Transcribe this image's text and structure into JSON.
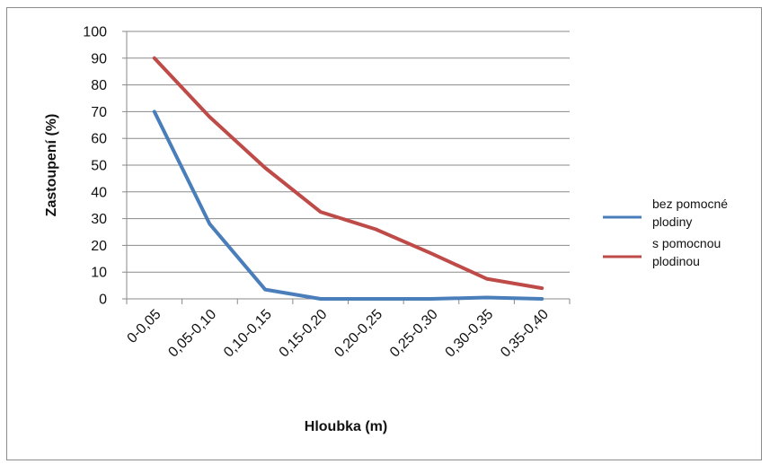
{
  "chart_data": {
    "type": "line",
    "title": "",
    "xlabel": "Hloubka (m)",
    "ylabel": "Zastoupení (%)",
    "ylim": [
      0,
      100
    ],
    "yticks": [
      0,
      10,
      20,
      30,
      40,
      50,
      60,
      70,
      80,
      90,
      100
    ],
    "grid": "horizontal",
    "legend_position": "right",
    "categories": [
      "0-0,05",
      "0,05-0,10",
      "0,10-0,15",
      "0,15-0,20",
      "0,20-0,25",
      "0,25-0,30",
      "0,30-0,35",
      "0,35-0,40"
    ],
    "series": [
      {
        "name": "bez pomocné plodiny",
        "legend_lines": [
          "bez pomocné",
          "plodiny"
        ],
        "color": "#4a7ebb",
        "values": [
          70,
          28,
          3.5,
          0,
          0,
          0,
          0.5,
          0
        ]
      },
      {
        "name": "s pomocnou plodinou",
        "legend_lines": [
          "s pomocnou",
          "plodinou"
        ],
        "color": "#be4b48",
        "values": [
          90,
          68,
          49,
          32.5,
          26,
          17,
          7.5,
          4
        ]
      }
    ]
  }
}
